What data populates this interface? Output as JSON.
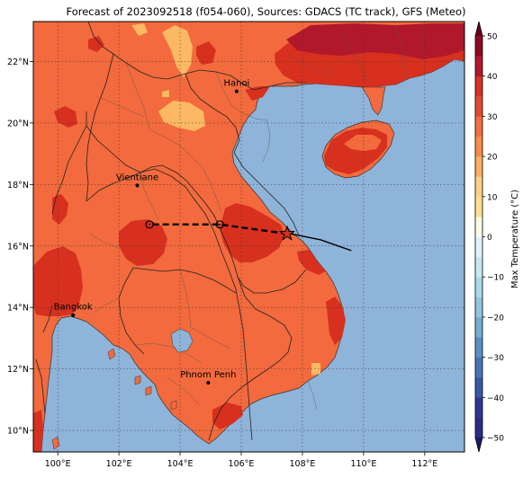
{
  "title": "Forecast of 2023092518 (f054-060), Sources: GDACS (TC track), GFS (Meteo)",
  "map": {
    "lon_range": [
      99.2,
      113.3
    ],
    "lat_range": [
      9.3,
      23.3
    ],
    "lon_ticks": [
      {
        "value": 100,
        "label": "100°E"
      },
      {
        "value": 102,
        "label": "102°E"
      },
      {
        "value": 104,
        "label": "104°E"
      },
      {
        "value": 106,
        "label": "106°E"
      },
      {
        "value": 108,
        "label": "108°E"
      },
      {
        "value": 110,
        "label": "110°E"
      },
      {
        "value": 112,
        "label": "112°E"
      }
    ],
    "lat_ticks": [
      {
        "value": 10,
        "label": "10°N"
      },
      {
        "value": 12,
        "label": "12°N"
      },
      {
        "value": 14,
        "label": "14°N"
      },
      {
        "value": 16,
        "label": "16°N"
      },
      {
        "value": 18,
        "label": "18°N"
      },
      {
        "value": 20,
        "label": "20°N"
      },
      {
        "value": 22,
        "label": "22°N"
      }
    ],
    "gridlines": true,
    "colors": {
      "ocean": "#8fb4d9",
      "land_base": "#f26a3d",
      "warm_patch": "#d7301f",
      "cool_patch": "#fdb863",
      "hot_patch": "#b2182b"
    },
    "cities": [
      {
        "name": "Hanoi",
        "lon": 105.85,
        "lat": 21.03
      },
      {
        "name": "Vientiane",
        "lon": 102.6,
        "lat": 17.97
      },
      {
        "name": "Bangkok",
        "lon": 100.5,
        "lat": 13.75
      },
      {
        "name": "Phnom Penh",
        "lon": 104.92,
        "lat": 11.55
      }
    ],
    "track_observed": [
      {
        "lon": 109.6,
        "lat": 15.85
      },
      {
        "lon": 108.6,
        "lat": 16.2
      },
      {
        "lon": 107.6,
        "lat": 16.4
      }
    ],
    "track_forecast": [
      {
        "lon": 107.5,
        "lat": 16.4
      },
      {
        "lon": 105.3,
        "lat": 16.7
      },
      {
        "lon": 103.0,
        "lat": 16.7
      }
    ],
    "track_markers": [
      {
        "lon": 105.3,
        "lat": 16.7
      },
      {
        "lon": 103.0,
        "lat": 16.7
      }
    ],
    "storm_position": {
      "lon": 107.5,
      "lat": 16.4
    }
  },
  "colorbar": {
    "label": "Max Temperature (°C)",
    "min": -50,
    "max": 50,
    "ticks": [
      {
        "value": 50,
        "label": "50"
      },
      {
        "value": 40,
        "label": "40"
      },
      {
        "value": 30,
        "label": "30"
      },
      {
        "value": 20,
        "label": "20"
      },
      {
        "value": 10,
        "label": "10"
      },
      {
        "value": 0,
        "label": "0"
      },
      {
        "value": -10,
        "label": "−10"
      },
      {
        "value": -20,
        "label": "−20"
      },
      {
        "value": -30,
        "label": "−30"
      },
      {
        "value": -40,
        "label": "−40"
      },
      {
        "value": -50,
        "label": "−50"
      }
    ],
    "bands": [
      {
        "from": -50,
        "to": -45,
        "color": "#2b2c8a"
      },
      {
        "from": -45,
        "to": -40,
        "color": "#313695"
      },
      {
        "from": -40,
        "to": -35,
        "color": "#3a58a8"
      },
      {
        "from": -35,
        "to": -30,
        "color": "#4575b4"
      },
      {
        "from": -30,
        "to": -25,
        "color": "#5b8fc4"
      },
      {
        "from": -25,
        "to": -20,
        "color": "#74add1"
      },
      {
        "from": -20,
        "to": -15,
        "color": "#92c5de"
      },
      {
        "from": -15,
        "to": -10,
        "color": "#abd9e9"
      },
      {
        "from": -10,
        "to": -5,
        "color": "#c8e7f0"
      },
      {
        "from": -5,
        "to": 0,
        "color": "#e0f3f8"
      },
      {
        "from": 0,
        "to": 5,
        "color": "#fbfbe8"
      },
      {
        "from": 5,
        "to": 10,
        "color": "#fee090"
      },
      {
        "from": 10,
        "to": 15,
        "color": "#fdd08a"
      },
      {
        "from": 15,
        "to": 20,
        "color": "#fdae61"
      },
      {
        "from": 20,
        "to": 25,
        "color": "#f88b4a"
      },
      {
        "from": 25,
        "to": 30,
        "color": "#f46d43"
      },
      {
        "from": 30,
        "to": 35,
        "color": "#e34a33"
      },
      {
        "from": 35,
        "to": 40,
        "color": "#d73027"
      },
      {
        "from": 40,
        "to": 45,
        "color": "#b2182b"
      },
      {
        "from": 45,
        "to": 50,
        "color": "#8b0a26"
      }
    ],
    "below_color": "#1a1a66",
    "above_color": "#67001f"
  }
}
